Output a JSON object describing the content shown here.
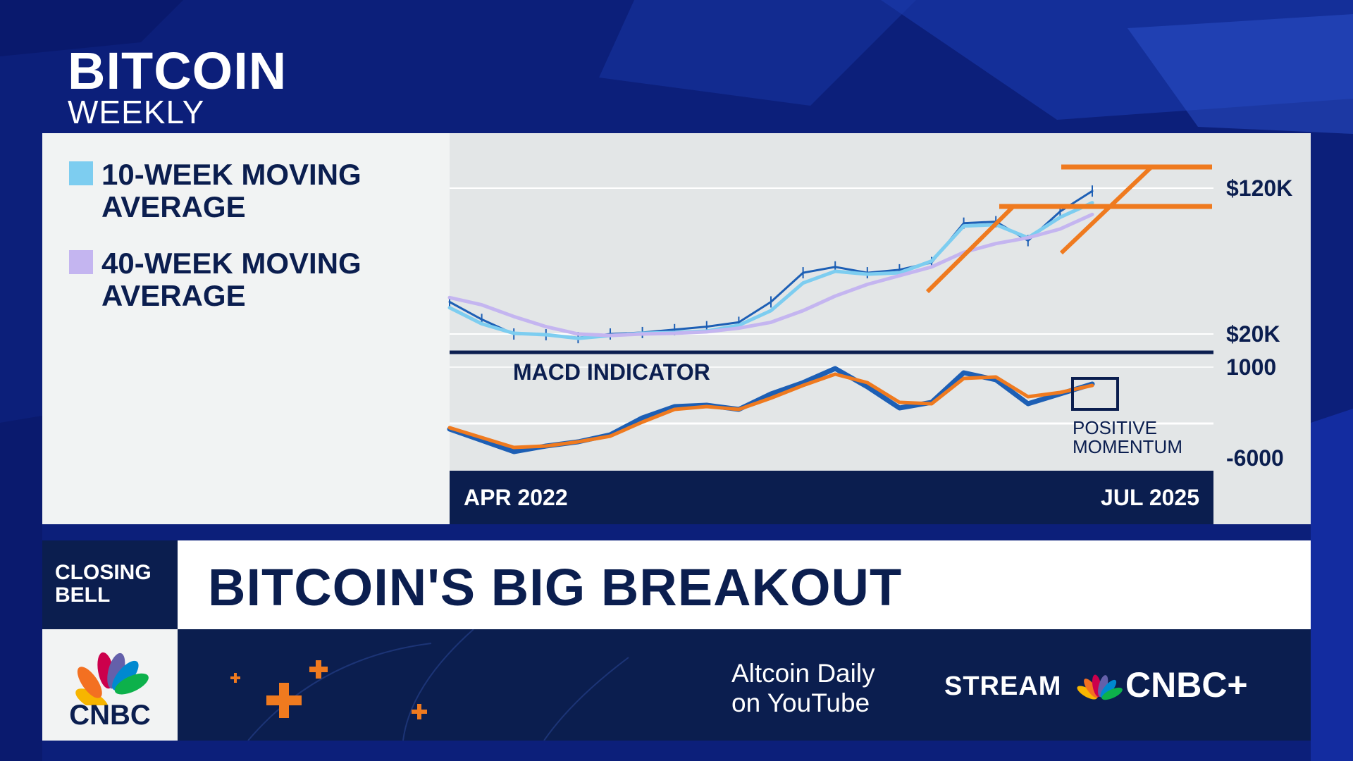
{
  "header": {
    "title": "BITCOIN",
    "subtitle": "WEEKLY"
  },
  "legend": [
    {
      "label": "10-WEEK MOVING AVERAGE",
      "color": "#7dcdf0"
    },
    {
      "label": "40-WEEK MOVING AVERAGE",
      "color": "#c4b5f0"
    }
  ],
  "chart_data": [
    {
      "type": "line",
      "title": "BITCOIN WEEKLY",
      "y_ticks": [
        "$120K",
        "$20K"
      ],
      "ylim": [
        20000,
        120000
      ],
      "x_range_labels": [
        "APR 2022",
        "JUL 2025"
      ],
      "x": [
        0,
        0.05,
        0.1,
        0.15,
        0.2,
        0.25,
        0.3,
        0.35,
        0.4,
        0.45,
        0.5,
        0.55,
        0.6,
        0.65,
        0.7,
        0.75,
        0.8,
        0.85,
        0.9,
        0.95,
        1.0
      ],
      "series": [
        {
          "name": "Price",
          "color": "#1d5fb5",
          "values": [
            42000,
            30000,
            20000,
            19500,
            17500,
            20000,
            21000,
            23000,
            25000,
            28000,
            42000,
            62000,
            66000,
            62000,
            64000,
            69000,
            96000,
            97000,
            84000,
            104000,
            118000
          ]
        },
        {
          "name": "10-WEEK MOVING AVERAGE",
          "color": "#7dcdf0",
          "values": [
            38000,
            27000,
            20500,
            19500,
            17000,
            19000,
            20500,
            21000,
            22000,
            26000,
            36000,
            55000,
            63000,
            61000,
            62000,
            70000,
            94000,
            95000,
            86000,
            100000,
            110000
          ]
        },
        {
          "name": "40-WEEK MOVING AVERAGE",
          "color": "#c4b5f0",
          "values": [
            45000,
            40000,
            32000,
            25000,
            20000,
            19000,
            20000,
            20500,
            21500,
            24000,
            28000,
            36000,
            46000,
            54000,
            60000,
            66000,
            76000,
            82000,
            86000,
            92000,
            102000
          ]
        }
      ],
      "annotations": [
        "resistance $120K",
        "breakout $120K+"
      ]
    },
    {
      "type": "line",
      "title": "MACD INDICATOR",
      "y_ticks": [
        "1000",
        "-6000"
      ],
      "ylim": [
        -6000,
        1000
      ],
      "x": [
        0,
        0.05,
        0.1,
        0.15,
        0.2,
        0.25,
        0.3,
        0.35,
        0.4,
        0.45,
        0.5,
        0.55,
        0.6,
        0.65,
        0.7,
        0.75,
        0.8,
        0.85,
        0.9,
        0.95,
        1.0
      ],
      "series": [
        {
          "name": "MACD",
          "color": "#1d5fb5",
          "values": [
            -3400,
            -4200,
            -5000,
            -4600,
            -4300,
            -3800,
            -2600,
            -1800,
            -1700,
            -2000,
            -900,
            -100,
            900,
            -400,
            -1900,
            -1500,
            600,
            100,
            -1600,
            -900,
            -200
          ]
        },
        {
          "name": "Signal",
          "color": "#ef7a1f",
          "values": [
            -3300,
            -4000,
            -4700,
            -4600,
            -4300,
            -3900,
            -2900,
            -2000,
            -1800,
            -2000,
            -1200,
            -300,
            500,
            -100,
            -1500,
            -1600,
            200,
            300,
            -1100,
            -800,
            -300
          ]
        }
      ],
      "annotations": [
        "POSITIVE MOMENTUM"
      ]
    }
  ],
  "macd_label": "MACD INDICATOR",
  "momentum_label": "POSITIVE MOMENTUM",
  "ticker": {
    "tag": "CLOSING BELL",
    "headline": "BITCOIN'S BIG BREAKOUT"
  },
  "footer": {
    "logo": "CNBC",
    "promo": "Altcoin Daily on YouTube",
    "stream": "STREAM",
    "network": "CNBC+"
  },
  "colors": {
    "navy": "#0b1e4f",
    "orange": "#ef7a1f",
    "price_blue": "#1d5fb5",
    "ma10": "#7dcdf0",
    "ma40": "#c4b5f0",
    "background": "#0c1f7a"
  }
}
